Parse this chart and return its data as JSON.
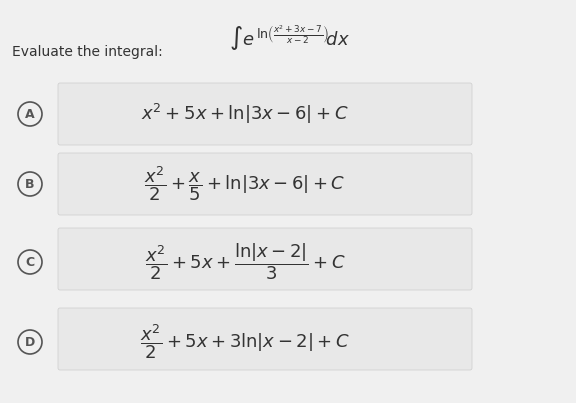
{
  "background_color": "#f0f0f0",
  "panel_color": "#ffffff",
  "title_text": "Evaluate the integral:",
  "integral_expr": "$\\int e^{\\ln\\!\\left(\\frac{x^2+3x-7}{x-2}\\right)}\\!dx$",
  "options": [
    {
      "label": "A",
      "expr": "$x^2 + 5x + \\ln|3x-6| + C$"
    },
    {
      "label": "B",
      "expr": "$\\dfrac{x^2}{2} + \\dfrac{x}{5} + \\ln|3x-6| + C$"
    },
    {
      "label": "C",
      "expr": "$\\dfrac{x^2}{2} + 5x + \\dfrac{\\ln|x-2|}{3} + C$"
    },
    {
      "label": "D",
      "expr": "$\\dfrac{x^2}{2} + 5x + 3\\ln|x-2| + C$"
    }
  ],
  "text_color": "#333333",
  "circle_color": "#555555",
  "box_colors": [
    "#e8e8e8",
    "#e8e8e8",
    "#e8e8e8",
    "#e8e8e8"
  ],
  "font_size_integral": 13,
  "font_size_option": 13,
  "font_size_label": 10
}
